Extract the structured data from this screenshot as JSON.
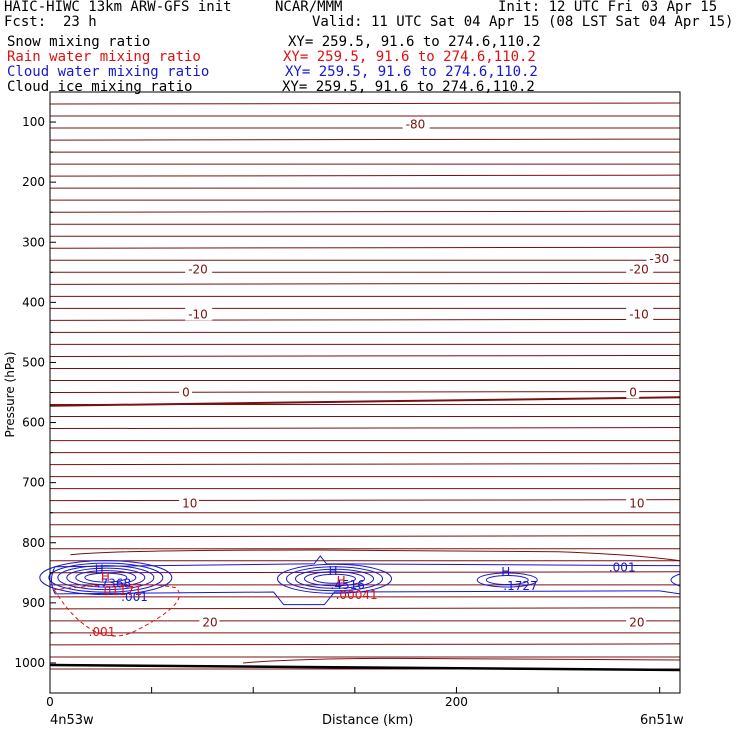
{
  "header": {
    "model": "HAIC-HIWC 13km ARW-GFS init",
    "org": "NCAR/MMM",
    "init": "Init: 12 UTC Fri 03 Apr 15",
    "fcst_label": "Fcst:",
    "fcst_value": "23 h",
    "valid": "Valid: 11 UTC Sat 04 Apr 15 (08 LST Sat 04 Apr 15)"
  },
  "fields": [
    {
      "name": "Snow mixing ratio",
      "xy": "XY= 259.5, 91.6 to 274.6,110.2",
      "color": "#000000"
    },
    {
      "name": "Rain water mixing ratio",
      "xy": "XY= 259.5, 91.6 to 274.6,110.2",
      "color": "#e01010"
    },
    {
      "name": "Cloud water mixing ratio",
      "xy": "XY= 259.5, 91.6 to 274.6,110.2",
      "color": "#1818d0"
    },
    {
      "name": "Cloud ice mixing ratio",
      "xy": "XY= 259.5, 91.6 to 274.6,110.2",
      "color": "#000000"
    }
  ],
  "chart_data": {
    "type": "line",
    "subtype": "cross-section contour",
    "ylabel": "Pressure (hPa)",
    "xlabel": "Distance (km)",
    "y_axis_reversed": true,
    "ylim": [
      1050,
      50
    ],
    "xlim": [
      0,
      310
    ],
    "y_ticks": [
      100,
      200,
      300,
      400,
      500,
      600,
      700,
      800,
      900,
      1000
    ],
    "x_ticks": [
      0,
      200
    ],
    "x_end_labels": {
      "left": "4n53w",
      "right": "6n51w"
    },
    "temperature_contour_color": "#7a1010",
    "temperature_isotherms": [
      {
        "label": "-80",
        "y": 104
      },
      {
        "label": "-30",
        "y": 328
      },
      {
        "label": "-20",
        "y": 345
      },
      {
        "label": "-10",
        "y": 420
      },
      {
        "label": "0",
        "y": 550
      },
      {
        "label": "10",
        "y": 735
      },
      {
        "label": "20",
        "y": 933
      }
    ],
    "cloud_water_maxima": [
      {
        "mark": "H",
        "value": ".7368",
        "x": 25,
        "y": 858
      },
      {
        "mark": "H",
        "value": ".4516",
        "x": 140,
        "y": 860
      },
      {
        "mark": "H",
        "value": ".1727",
        "x": 225,
        "y": 862
      }
    ],
    "cloud_water_contour_labels": [
      ".001",
      ".001"
    ],
    "rain_water_maxima": [
      {
        "mark": "H",
        "value": ".01171",
        "x": 27,
        "y": 874
      },
      {
        "mark": "H",
        "value": ".00041",
        "x": 143,
        "y": 880
      }
    ],
    "rain_water_contour_labels": [
      ".001"
    ]
  }
}
